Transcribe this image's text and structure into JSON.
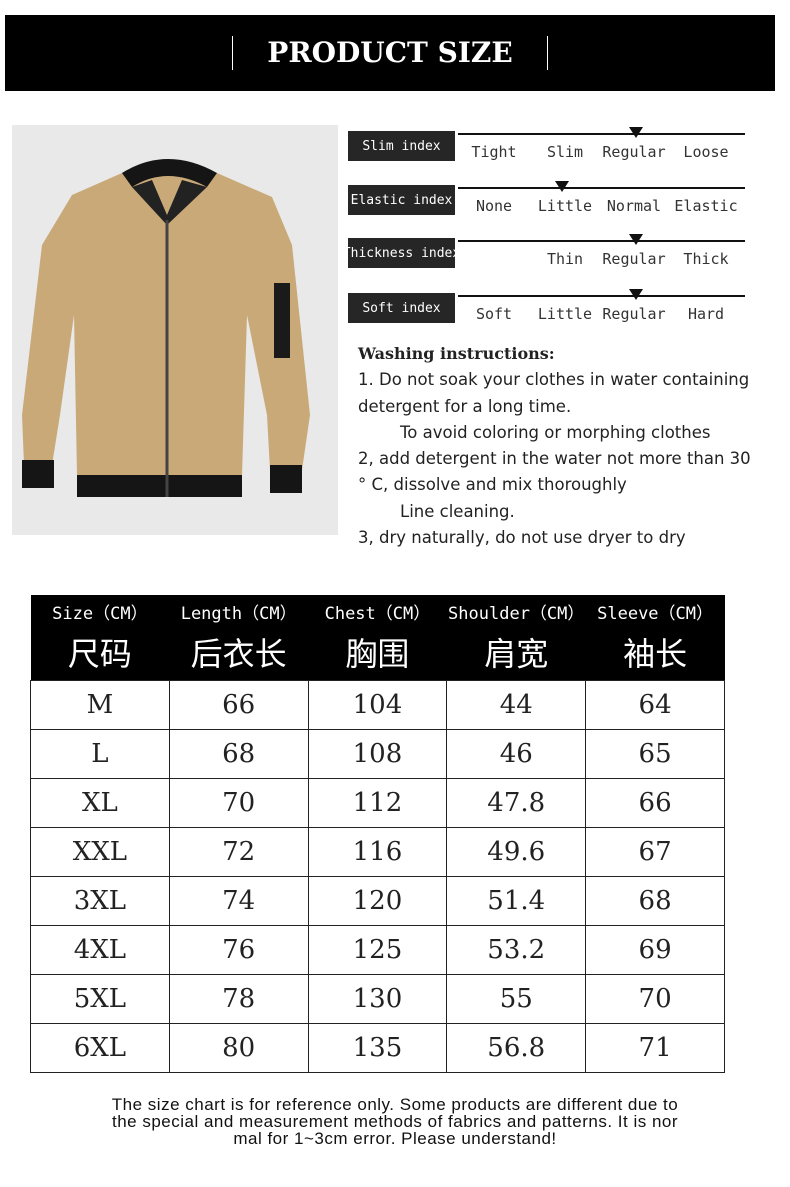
{
  "header": {
    "title": "PRODUCT SIZE"
  },
  "product_image": {
    "description_icon": "jacket-image",
    "color": "#c9a978"
  },
  "indices": [
    {
      "label": "Slim index",
      "options": [
        "Tight",
        "Slim",
        "Regular",
        "Loose"
      ],
      "selected": "Regular"
    },
    {
      "label": "Elastic index",
      "options": [
        "None",
        "Little",
        "Normal",
        "Elastic"
      ],
      "selected": "Little"
    },
    {
      "label": "Thickness index",
      "options": [
        "",
        "Thin",
        "Regular",
        "Thick"
      ],
      "selected": "Regular"
    },
    {
      "label": "Soft index",
      "options": [
        "Soft",
        "Little",
        "Regular",
        "Hard"
      ],
      "selected": "Regular"
    }
  ],
  "washing": {
    "title": "Washing instructions:",
    "lines": [
      "1. Do not soak your clothes in water containing",
      "detergent for a long time.",
      "To avoid coloring or morphing clothes",
      "2, add detergent in the water not more than 30",
      "° C, dissolve and mix thoroughly",
      "Line cleaning.",
      "3, dry naturally, do not use dryer to dry"
    ]
  },
  "size_table": {
    "headers": [
      {
        "en": "Size（CM）",
        "zh": "尺码"
      },
      {
        "en": "Length（CM）",
        "zh": "后衣长"
      },
      {
        "en": "Chest（CM）",
        "zh": "胸围"
      },
      {
        "en": "Shoulder（CM）",
        "zh": "肩宽"
      },
      {
        "en": "Sleeve（CM）",
        "zh": "袖长"
      }
    ],
    "rows": [
      [
        "M",
        "66",
        "104",
        "44",
        "64"
      ],
      [
        "L",
        "68",
        "108",
        "46",
        "65"
      ],
      [
        "XL",
        "70",
        "112",
        "47.8",
        "66"
      ],
      [
        "XXL",
        "72",
        "116",
        "49.6",
        "67"
      ],
      [
        "3XL",
        "74",
        "120",
        "51.4",
        "68"
      ],
      [
        "4XL",
        "76",
        "125",
        "53.2",
        "69"
      ],
      [
        "5XL",
        "78",
        "130",
        "55",
        "70"
      ],
      [
        "6XL",
        "80",
        "135",
        "56.8",
        "71"
      ]
    ]
  },
  "note": [
    "The size chart is for reference only. Some products are different due to",
    "the special and measurement methods of fabrics and patterns. It is nor",
    "mal for 1~3cm error. Please understand!"
  ]
}
